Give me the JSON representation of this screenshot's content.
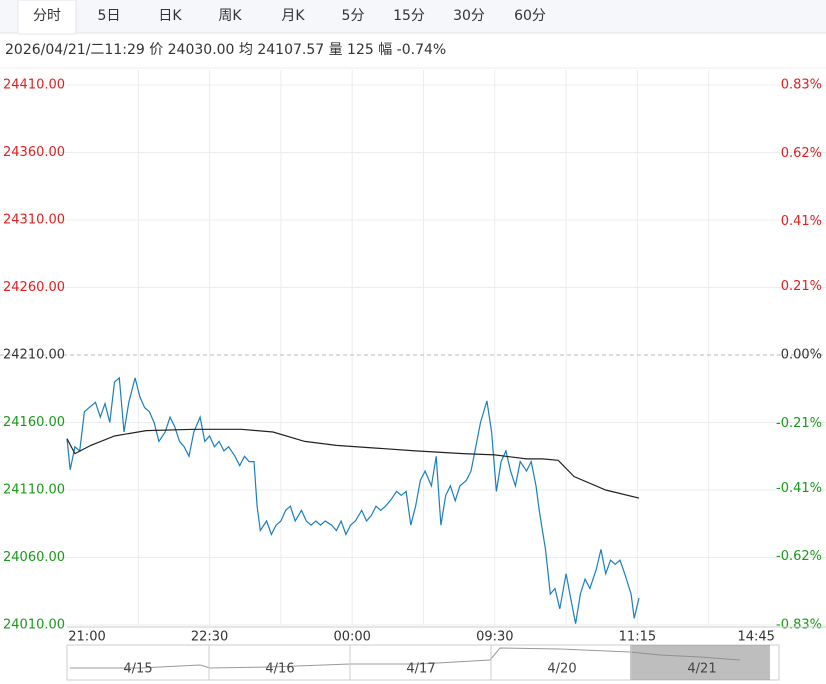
{
  "tabs": [
    "分时",
    "5日",
    "日K",
    "周K",
    "月K",
    "5分",
    "15分",
    "30分",
    "60分"
  ],
  "info": "2026/04/21/二11:29  价 24030.00  均 24107.57  量 125  幅 -0.74%",
  "chart_data": {
    "type": "line",
    "xlim": [
      0,
      450
    ],
    "xticks": [
      {
        "value": 0,
        "label": "21:00"
      },
      {
        "value": 90,
        "label": "22:30"
      },
      {
        "value": 180,
        "label": "00:00"
      },
      {
        "value": 270,
        "label": "09:30"
      },
      {
        "value": 360,
        "label": "11:15"
      },
      {
        "value": 435,
        "label": "14:45"
      }
    ],
    "xgrid": [
      45,
      90,
      135,
      180,
      225,
      270,
      315,
      360,
      405
    ],
    "ylim": [
      24010,
      24410
    ],
    "yticks": [
      {
        "value": 24410,
        "label": "24410.00"
      },
      {
        "value": 24360,
        "label": "24360.00"
      },
      {
        "value": 24310,
        "label": "24310.00"
      },
      {
        "value": 24260,
        "label": "24260.00"
      },
      {
        "value": 24210,
        "label": "24210.00"
      },
      {
        "value": 24160,
        "label": "24160.00"
      },
      {
        "value": 24110,
        "label": "24110.00"
      },
      {
        "value": 24060,
        "label": "24060.00"
      },
      {
        "value": 24010,
        "label": "24010.00"
      }
    ],
    "y2lim": [
      -0.83,
      0.83
    ],
    "y2ticks": [
      {
        "value": 0.83,
        "label": "0.83%"
      },
      {
        "value": 0.62,
        "label": "0.62%"
      },
      {
        "value": 0.41,
        "label": "0.41%"
      },
      {
        "value": 0.21,
        "label": "0.21%"
      },
      {
        "value": 0,
        "label": "0.00%"
      },
      {
        "value": -0.21,
        "label": "-0.21%"
      },
      {
        "value": -0.41,
        "label": "-0.41%"
      },
      {
        "value": -0.62,
        "label": "-0.62%"
      },
      {
        "value": -0.83,
        "label": "-0.83%"
      }
    ],
    "up_color": "#e02020",
    "down_color": "#1a9a1a",
    "flat_color": "#333333",
    "grid": true,
    "series": [
      {
        "color": "#1a7fbf",
        "x": [
          0,
          2,
          5,
          8,
          11,
          14,
          18,
          21,
          24,
          27,
          30,
          33,
          36,
          39,
          43,
          46,
          49,
          52,
          55,
          58,
          62,
          65,
          68,
          71,
          74,
          77,
          80,
          84,
          87,
          90,
          93,
          96,
          99,
          102,
          106,
          109,
          112,
          115,
          118,
          120,
          122,
          126,
          129,
          132,
          135,
          138,
          141,
          144,
          148,
          151,
          154,
          157,
          160,
          163,
          167,
          170,
          173,
          176,
          179,
          182,
          186,
          189,
          192,
          195,
          198,
          201,
          204,
          208,
          211,
          214,
          217,
          220,
          223,
          226,
          230,
          233,
          236,
          239,
          242,
          245,
          248,
          252,
          255,
          258,
          261,
          265,
          268,
          271,
          274,
          277,
          280,
          283,
          286,
          290,
          293,
          296,
          298,
          302,
          305,
          308,
          311,
          315,
          318,
          321,
          324,
          327,
          330,
          334,
          337,
          340,
          343,
          346,
          349,
          352,
          356,
          358,
          361
        ],
        "values": [
          24148,
          24125,
          24142,
          24139,
          24168,
          24171,
          24175,
          24164,
          24174,
          24160,
          24190,
          24193,
          24153,
          24175,
          24193,
          24179,
          24171,
          24168,
          24160,
          24146,
          24153,
          24164,
          24157,
          24146,
          24142,
          24135,
          24153,
          24164,
          24146,
          24150,
          24142,
          24146,
          24139,
          24142,
          24135,
          24128,
          24135,
          24131,
          24131,
          24098,
          24080,
          24087,
          24077,
          24084,
          24087,
          24095,
          24098,
          24087,
          24095,
          24087,
          24084,
          24087,
          24084,
          24087,
          24084,
          24080,
          24087,
          24077,
          24084,
          24087,
          24095,
          24087,
          24091,
          24098,
          24095,
          24098,
          24102,
          24109,
          24106,
          24109,
          24084,
          24098,
          24117,
          24124,
          24113,
          24135,
          24084,
          24106,
          24113,
          24102,
          24113,
          24117,
          24124,
          24142,
          24160,
          24176,
          24153,
          24109,
          24131,
          24139,
          24124,
          24113,
          24131,
          24124,
          24131,
          24113,
          24095,
          24066,
          24033,
          24037,
          24022,
          24048,
          24029,
          24011,
          24033,
          24044,
          24037,
          24051,
          24066,
          24048,
          24058,
          24055,
          24058,
          24048,
          24033,
          24015,
          24030
        ]
      },
      {
        "color": "#222222",
        "x": [
          0,
          5,
          15,
          30,
          50,
          80,
          110,
          130,
          150,
          170,
          195,
          220,
          250,
          270,
          290,
          300,
          310,
          320,
          340,
          361
        ],
        "values": [
          24148,
          24137,
          24143,
          24150,
          24154,
          24155,
          24155,
          24153,
          24146,
          24143,
          24141,
          24139,
          24137,
          24136,
          24133,
          24133,
          24132,
          24120,
          24110,
          24104
        ]
      }
    ]
  },
  "navigator": {
    "labels": [
      "4/15",
      "4/16",
      "4/17",
      "4/20",
      "4/21"
    ]
  }
}
